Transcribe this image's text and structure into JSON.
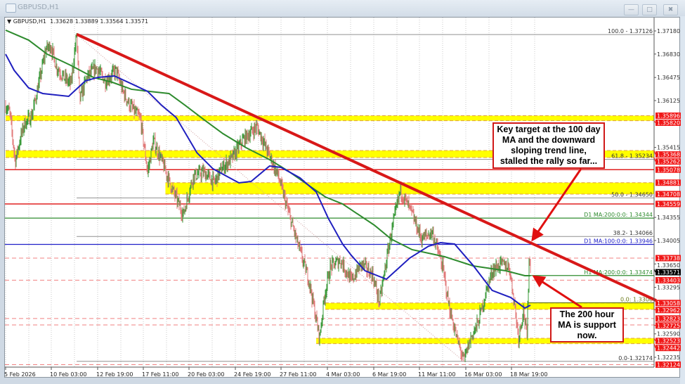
{
  "window": {
    "title": "GBPUSD,H1",
    "buttons": [
      "minimize",
      "maximize",
      "close"
    ]
  },
  "chart_data": {
    "type": "candlestick",
    "header": {
      "symbol": "GBPUSD,H1",
      "open": "1.33628",
      "high": "1.33889",
      "low": "1.33564",
      "close": "1.33571"
    },
    "ylim": [
      1.32107,
      1.37276
    ],
    "grid": true,
    "colors": {
      "bull": "#3a9a3a",
      "bear": "#e07878",
      "ma_h1_100": "#1f1fbf",
      "ma_h1_200": "#2e8b2e",
      "trendline": "#d81818",
      "zone": "#ffff00",
      "level_red": "#e02020"
    },
    "y_ticks": [
      "1.37180",
      "1.36830",
      "1.36475",
      "1.36125",
      "1.35415",
      "1.34355",
      "1.34005",
      "1.33650",
      "1.33295",
      "1.32590",
      "1.32235"
    ],
    "x_ticks": [
      {
        "label": "5 Feb 2026",
        "t": "2026-02-05 00:00"
      },
      {
        "label": "10 Feb 03:00",
        "t": "2026-02-10 03:00"
      },
      {
        "label": "12 Feb 19:00",
        "t": "2026-02-12 19:00"
      },
      {
        "label": "17 Feb 11:00",
        "t": "2026-02-17 11:00"
      },
      {
        "label": "20 Feb 03:00",
        "t": "2026-02-20 03:00"
      },
      {
        "label": "24 Feb 19:00",
        "t": "2026-02-24 19:00"
      },
      {
        "label": "27 Feb 11:00",
        "t": "2026-02-27 11:00"
      },
      {
        "label": "4 Mar 03:00",
        "t": "2026-03-04 03:00"
      },
      {
        "label": "6 Mar 19:00",
        "t": "2026-03-06 19:00"
      },
      {
        "label": "11 Mar 11:00",
        "t": "2026-03-11 11:00"
      },
      {
        "label": "16 Mar 03:00",
        "t": "2026-03-16 03:00"
      },
      {
        "label": "18 Mar 19:00",
        "t": "2026-03-18 19:00"
      }
    ],
    "price_path": [
      [
        "2026-02-05 00:00",
        1.3605
      ],
      [
        "2026-02-05 11:00",
        1.3594
      ],
      [
        "2026-02-06 02:00",
        1.352
      ],
      [
        "2026-02-06 14:00",
        1.3552
      ],
      [
        "2026-02-07 03:00",
        1.3578
      ],
      [
        "2026-02-07 22:00",
        1.3589
      ],
      [
        "2026-02-08 17:00",
        1.3637
      ],
      [
        "2026-02-09 12:00",
        1.369
      ],
      [
        "2026-02-10 01:00",
        1.3696
      ],
      [
        "2026-02-10 10:00",
        1.3664
      ],
      [
        "2026-02-10 20:00",
        1.3648
      ],
      [
        "2026-02-11 06:00",
        1.3637
      ],
      [
        "2026-02-11 14:00",
        1.3713
      ],
      [
        "2026-02-11 18:00",
        1.3612
      ],
      [
        "2026-02-12 04:00",
        1.3648
      ],
      [
        "2026-02-12 17:00",
        1.3662
      ],
      [
        "2026-02-13 14:00",
        1.3642
      ],
      [
        "2026-02-14 16:00",
        1.3658
      ],
      [
        "2026-02-15 09:00",
        1.3626
      ],
      [
        "2026-02-16 02:00",
        1.3605
      ],
      [
        "2026-02-17 04:00",
        1.3584
      ],
      [
        "2026-02-17 17:00",
        1.3504
      ],
      [
        "2026-02-18 01:00",
        1.3552
      ],
      [
        "2026-02-18 13:00",
        1.352
      ],
      [
        "2026-02-19 04:00",
        1.3477
      ],
      [
        "2026-02-19 19:00",
        1.344
      ],
      [
        "2026-02-20 13:00",
        1.3498
      ],
      [
        "2026-02-21 15:00",
        1.3504
      ],
      [
        "2026-02-22 16:00",
        1.3488
      ],
      [
        "2026-02-23 09:00",
        1.3509
      ],
      [
        "2026-02-24 11:00",
        1.3525
      ],
      [
        "2026-02-25 05:00",
        1.3552
      ],
      [
        "2026-02-26 01:00",
        1.3573
      ],
      [
        "2026-02-26 14:00",
        1.3541
      ],
      [
        "2026-02-27 07:00",
        1.3498
      ],
      [
        "2026-02-28 04:00",
        1.3445
      ],
      [
        "2026-03-01 05:00",
        1.3392
      ],
      [
        "2026-03-02 07:00",
        1.3339
      ],
      [
        "2026-03-03 08:00",
        1.3253
      ],
      [
        "2026-03-03 20:00",
        1.3317
      ],
      [
        "2026-03-04 07:00",
        1.336
      ],
      [
        "2026-03-04 21:00",
        1.3371
      ],
      [
        "2026-03-05 12:00",
        1.3339
      ],
      [
        "2026-03-06 02:00",
        1.3365
      ],
      [
        "2026-03-06 17:00",
        1.3349
      ],
      [
        "2026-03-07 09:00",
        1.3307
      ],
      [
        "2026-03-08 11:00",
        1.3403
      ],
      [
        "2026-03-09 12:00",
        1.3477
      ],
      [
        "2026-03-10 14:00",
        1.3445
      ],
      [
        "2026-03-11 16:00",
        1.3403
      ],
      [
        "2026-03-12 18:00",
        1.3413
      ],
      [
        "2026-03-13 19:00",
        1.336
      ],
      [
        "2026-03-14 12:00",
        1.3296
      ],
      [
        "2026-03-15 05:00",
        1.3253
      ],
      [
        "2026-03-15 22:00",
        1.3218
      ],
      [
        "2026-03-16 10:00",
        1.3253
      ],
      [
        "2026-03-16 20:00",
        1.3275
      ],
      [
        "2026-03-17 06:00",
        1.3317
      ],
      [
        "2026-03-17 16:00",
        1.3355
      ],
      [
        "2026-03-18 04:00",
        1.3365
      ],
      [
        "2026-03-18 16:00",
        1.336
      ],
      [
        "2026-03-18 23:00",
        1.3307
      ],
      [
        "2026-03-19 05:00",
        1.3253
      ],
      [
        "2026-03-19 12:00",
        1.3296
      ],
      [
        "2026-03-19 17:00",
        1.3253
      ],
      [
        "2026-03-19 20:00",
        1.3376
      ],
      [
        "2026-03-19 22:00",
        1.3357
      ]
    ],
    "ma_h1_100": [
      [
        "2026-02-05 00:00",
        1.36828
      ],
      [
        "2026-02-05 23:00",
        1.36583
      ],
      [
        "2026-02-07 14:00",
        1.36317
      ],
      [
        "2026-02-09 04:00",
        1.36232
      ],
      [
        "2026-02-11 03:00",
        1.36189
      ],
      [
        "2026-02-12 02:00",
        1.36423
      ],
      [
        "2026-02-12 20:00",
        1.36477
      ],
      [
        "2026-02-14 12:00",
        1.36498
      ],
      [
        "2026-02-16 02:00",
        1.36391
      ],
      [
        "2026-02-17 17:00",
        1.36264
      ],
      [
        "2026-02-18 13:00",
        1.3605
      ],
      [
        "2026-02-19 09:00",
        1.35869
      ],
      [
        "2026-02-20 22:00",
        1.35336
      ],
      [
        "2026-02-22 13:00",
        1.35091
      ],
      [
        "2026-02-25 00:00",
        1.34878
      ],
      [
        "2026-02-25 17:00",
        1.34899
      ],
      [
        "2026-02-26 19:00",
        1.35134
      ],
      [
        "2026-02-27 11:00",
        1.35113
      ],
      [
        "2026-03-01 09:00",
        1.34953
      ],
      [
        "2026-03-03 00:00",
        1.3474
      ],
      [
        "2026-03-04 04:00",
        1.34346
      ],
      [
        "2026-03-05 00:00",
        1.33951
      ],
      [
        "2026-03-05 12:00",
        1.3378
      ],
      [
        "2026-03-06 07:00",
        1.33546
      ],
      [
        "2026-03-08 02:00",
        1.33418
      ],
      [
        "2026-03-10 11:00",
        1.33738
      ],
      [
        "2026-03-12 09:00",
        1.33919
      ],
      [
        "2026-03-13 14:00",
        1.33972
      ],
      [
        "2026-03-15 00:00",
        1.33951
      ],
      [
        "2026-03-16 13:00",
        1.33631
      ],
      [
        "2026-03-17 16:00",
        1.33248
      ],
      [
        "2026-03-18 18:00",
        1.33141
      ],
      [
        "2026-03-19 14:00",
        1.32981
      ],
      [
        "2026-03-19 22:00",
        1.33024
      ]
    ],
    "ma_h1_200": [
      [
        "2026-02-05 00:00",
        1.37191
      ],
      [
        "2026-02-07 14:00",
        1.37041
      ],
      [
        "2026-02-09 16:00",
        1.36828
      ],
      [
        "2026-02-11 06:00",
        1.36658
      ],
      [
        "2026-02-12 13:00",
        1.36477
      ],
      [
        "2026-02-14 07:00",
        1.36402
      ],
      [
        "2026-02-16 06:00",
        1.36296
      ],
      [
        "2026-02-17 20:00",
        1.36264
      ],
      [
        "2026-02-18 23:00",
        1.36232
      ],
      [
        "2026-02-19 22:00",
        1.3605
      ],
      [
        "2026-02-21 15:00",
        1.35837
      ],
      [
        "2026-02-23 13:00",
        1.35624
      ],
      [
        "2026-02-25 10:00",
        1.35411
      ],
      [
        "2026-02-26 19:00",
        1.3523
      ],
      [
        "2026-02-28 04:00",
        1.35059
      ],
      [
        "2026-03-02 02:00",
        1.34857
      ],
      [
        "2026-03-03 22:00",
        1.34665
      ],
      [
        "2026-03-05 00:00",
        1.34558
      ],
      [
        "2026-03-06 20:00",
        1.34239
      ],
      [
        "2026-03-08 14:00",
        1.34026
      ],
      [
        "2026-03-10 17:00",
        1.33866
      ],
      [
        "2026-03-14 00:00",
        1.33759
      ],
      [
        "2026-03-16 13:00",
        1.33621
      ],
      [
        "2026-03-18 11:00",
        1.33546
      ],
      [
        "2026-03-19 14:00",
        1.33472
      ],
      [
        "2026-03-19 22:00",
        1.33472
      ]
    ],
    "zones": [
      {
        "high": 1.35896,
        "low": 1.3582,
        "from": "2026-02-05 00:00"
      },
      {
        "high": 1.35368,
        "low": 1.35262,
        "from": "2026-02-05 00:00"
      },
      {
        "high": 1.34881,
        "low": 1.34708,
        "from": "2026-02-18 18:00"
      },
      {
        "high": 1.33058,
        "low": 1.32962,
        "from": "2026-03-03 22:00"
      },
      {
        "high": 1.32523,
        "low": 1.32442,
        "from": "2026-03-03 00:00"
      }
    ],
    "red_levels": [
      1.35078,
      1.34559
    ],
    "dashed_levels": [
      1.33738,
      1.33403,
      1.32823,
      1.32725,
      1.32124
    ],
    "fib_levels": [
      {
        "label": "100.0 - 1.37126",
        "price": 1.37126
      },
      {
        "label": "61.8 - 1.35234",
        "price": 1.35234
      },
      {
        "label": "50.0 - 1.34650",
        "price": 1.3465
      },
      {
        "label": "38.2- 1.34066",
        "price": 1.34066
      },
      {
        "label": "0.0-1.32174",
        "price": 1.32174
      }
    ],
    "fib_from": "2026-02-11 14:00",
    "fib_diagonal": [
      [
        "2026-02-11 14:00",
        1.37126
      ],
      [
        "2026-03-15 22:00",
        1.32174
      ]
    ],
    "ma_levels": [
      {
        "label": "D1 MA:200:0:0: 1.34344",
        "price": 1.34344,
        "color": "#2e8b2e"
      },
      {
        "label": "D1 MA:100:0:0: 1.33946",
        "price": 1.33946,
        "color": "#2020c8"
      },
      {
        "label": "H1 MA:200:0:0: 1.33474",
        "price": 1.33474,
        "color": "#2e8b2e",
        "from": "2026-03-19 22:00"
      },
      {
        "label": "0.0: 1.3306",
        "price": 1.33061,
        "color": "#6b7a1a",
        "from": "2026-03-19 19:00"
      }
    ],
    "price_labels": [
      "1.35896",
      "1.35820",
      "1.35368",
      "1.35262",
      "1.35078",
      "1.34881",
      "1.34708",
      "1.34559",
      "1.33738",
      "1.33403",
      "1.33058",
      "1.32962",
      "1.32823",
      "1.32725",
      "1.32523",
      "1.32442",
      "1.32124"
    ],
    "current_price": "1.33571",
    "trendline": [
      [
        "2026-02-11 14:00",
        1.3713
      ],
      [
        "2026-03-19 19:00",
        1.33986
      ]
    ]
  },
  "annotations": {
    "callout_top": "Key target at the 100 day MA and the downward sloping trend line, stalled the rally so far...",
    "callout_bottom": "The 200 hour MA is support now."
  }
}
